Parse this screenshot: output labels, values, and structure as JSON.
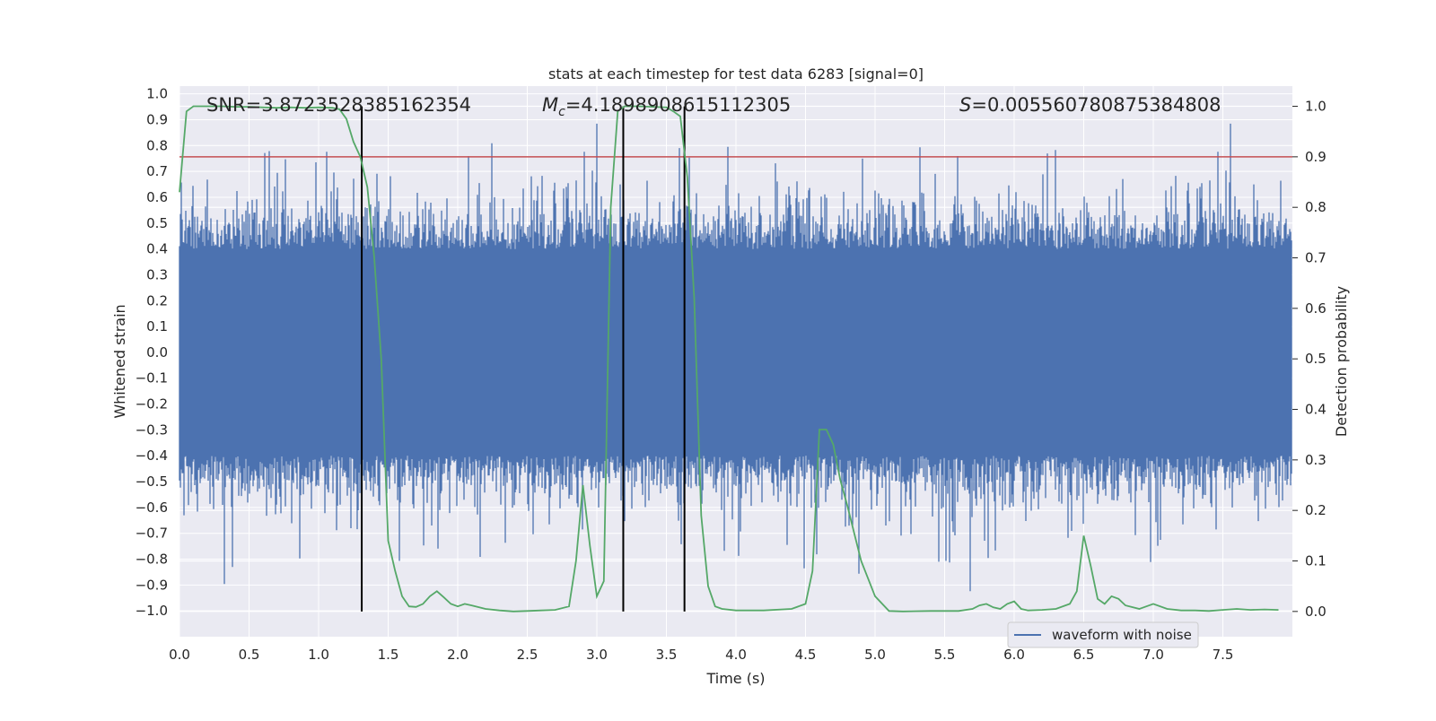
{
  "chart_data": {
    "type": "line",
    "title": "stats at each timestep for test data 6283 [signal=0]",
    "xlabel": "Time (s)",
    "ylabel_left": "Whitened strain",
    "ylabel_right": "Detection probability",
    "xlim": [
      0.0,
      8.0
    ],
    "ylim_left": [
      -1.1,
      1.03
    ],
    "ylim_right": [
      -0.05,
      1.04
    ],
    "grid": true,
    "legend_position": "bottom-right",
    "x_ticks": [
      "0.0",
      "0.5",
      "1.0",
      "1.5",
      "2.0",
      "2.5",
      "3.0",
      "3.5",
      "4.0",
      "4.5",
      "5.0",
      "5.5",
      "6.0",
      "6.5",
      "7.0",
      "7.5"
    ],
    "y_ticks_left": [
      "1.0",
      "0.9",
      "0.8",
      "0.7",
      "0.6",
      "0.5",
      "0.4",
      "0.3",
      "0.2",
      "0.1",
      "0.0",
      "−0.1",
      "−0.2",
      "−0.3",
      "−0.4",
      "−0.5",
      "−0.6",
      "−0.7",
      "−0.8",
      "−0.9",
      "−1.0"
    ],
    "y_ticks_right": [
      "1.0",
      "0.9",
      "0.8",
      "0.7",
      "0.6",
      "0.5",
      "0.4",
      "0.3",
      "0.2",
      "0.1",
      "0.0"
    ],
    "annotations": {
      "snr": "SNR=3.8723528385162354",
      "mc_symbol": "M",
      "mc_sub": "c",
      "mc_value": "=4.189890861511230​5",
      "s_symbol": "S",
      "s_value": "=0.005560780875384808"
    },
    "threshold": {
      "value": 0.9,
      "axis": "right",
      "color": "#c44e52"
    },
    "vertical_markers": [
      1.31,
      3.19,
      3.63
    ],
    "series": [
      {
        "name": "waveform with noise",
        "axis": "left",
        "color": "#4c72b0",
        "kind": "noise",
        "core_amplitude": 0.4,
        "typical_peak": 0.58,
        "max_abs": 1.0,
        "duration": 8.0
      },
      {
        "name": "detection probability",
        "axis": "right",
        "color": "#55a868",
        "x": [
          0.0,
          0.05,
          0.1,
          0.2,
          0.3,
          0.4,
          0.5,
          0.6,
          0.7,
          0.8,
          0.9,
          1.0,
          1.1,
          1.15,
          1.2,
          1.25,
          1.3,
          1.35,
          1.4,
          1.45,
          1.5,
          1.55,
          1.6,
          1.65,
          1.7,
          1.75,
          1.8,
          1.85,
          1.9,
          1.95,
          2.0,
          2.05,
          2.1,
          2.2,
          2.3,
          2.4,
          2.5,
          2.6,
          2.7,
          2.8,
          2.85,
          2.9,
          2.95,
          3.0,
          3.05,
          3.1,
          3.15,
          3.2,
          3.25,
          3.3,
          3.4,
          3.5,
          3.55,
          3.6,
          3.65,
          3.7,
          3.75,
          3.8,
          3.85,
          3.9,
          4.0,
          4.2,
          4.4,
          4.5,
          4.55,
          4.6,
          4.65,
          4.7,
          4.75,
          4.8,
          4.9,
          5.0,
          5.1,
          5.2,
          5.4,
          5.6,
          5.7,
          5.75,
          5.8,
          5.85,
          5.9,
          5.95,
          6.0,
          6.05,
          6.1,
          6.2,
          6.3,
          6.4,
          6.45,
          6.5,
          6.55,
          6.6,
          6.65,
          6.7,
          6.75,
          6.8,
          6.9,
          7.0,
          7.1,
          7.2,
          7.3,
          7.4,
          7.5,
          7.6,
          7.7,
          7.8,
          7.9
        ],
        "values": [
          0.83,
          0.99,
          1.0,
          1.0,
          1.0,
          0.999,
          0.999,
          0.998,
          0.997,
          0.998,
          0.997,
          0.998,
          0.997,
          0.994,
          0.975,
          0.93,
          0.9,
          0.84,
          0.7,
          0.5,
          0.14,
          0.08,
          0.03,
          0.01,
          0.009,
          0.015,
          0.03,
          0.04,
          0.028,
          0.015,
          0.01,
          0.015,
          0.012,
          0.005,
          0.002,
          0.0,
          0.001,
          0.002,
          0.003,
          0.01,
          0.1,
          0.25,
          0.13,
          0.03,
          0.06,
          0.8,
          0.99,
          1.0,
          1.0,
          1.0,
          0.999,
          0.998,
          0.99,
          0.98,
          0.86,
          0.62,
          0.19,
          0.05,
          0.01,
          0.005,
          0.002,
          0.002,
          0.005,
          0.015,
          0.08,
          0.36,
          0.36,
          0.33,
          0.26,
          0.21,
          0.1,
          0.03,
          0.001,
          0.0,
          0.001,
          0.001,
          0.005,
          0.012,
          0.015,
          0.008,
          0.005,
          0.015,
          0.02,
          0.005,
          0.002,
          0.003,
          0.005,
          0.015,
          0.04,
          0.15,
          0.09,
          0.025,
          0.015,
          0.03,
          0.025,
          0.012,
          0.005,
          0.015,
          0.005,
          0.002,
          0.002,
          0.001,
          0.003,
          0.005,
          0.003,
          0.004,
          0.003
        ]
      }
    ],
    "legend": [
      {
        "label": "waveform with noise",
        "color": "#4c72b0"
      }
    ]
  }
}
